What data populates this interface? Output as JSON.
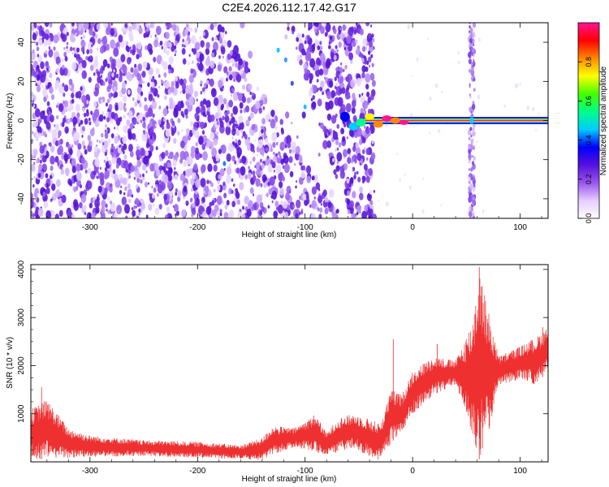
{
  "figure_title": "C2E4.2026.112.17.42.G17",
  "chart_data": [
    {
      "type": "heatmap",
      "title": "",
      "xlabel": "Height of straight line (km)",
      "ylabel": "Frequency (Hz)",
      "xlim": [
        -355,
        126
      ],
      "ylim": [
        -50,
        50
      ],
      "xticks": [
        -300,
        -200,
        -100,
        0,
        100
      ],
      "yticks": [
        -40,
        -20,
        0,
        20,
        40
      ],
      "colorbar": {
        "label": "Normalized spectral amplitude",
        "range": [
          0,
          1
        ],
        "ticks": [
          0.0,
          0.2,
          0.4,
          0.6,
          0.8
        ],
        "colormap": [
          "#ffffff",
          "#e6ccff",
          "#9955ee",
          "#5511dd",
          "#0000ff",
          "#00ccff",
          "#00ff88",
          "#44ff00",
          "#ffff00",
          "#ff8800",
          "#ff0000",
          "#ff1493"
        ]
      },
      "features": {
        "background_noise_x_range": [
          -355,
          -50
        ],
        "clear_wedge_description": "white diagonal gap from about (-180 km, 50 Hz) to (-60 km, -50 Hz)",
        "stable_tone": {
          "x_range": [
            -60,
            126
          ],
          "frequency": 0,
          "peak_amplitude": 1.0
        },
        "vertical_noise_band_x": 55
      }
    },
    {
      "type": "line",
      "title": "",
      "xlabel": "Height of straight line (km)",
      "ylabel": "SNR (10 * v/v)",
      "xlim": [
        -355,
        126
      ],
      "ylim": [
        0,
        4100
      ],
      "xticks": [
        -300,
        -200,
        -100,
        0,
        100
      ],
      "yticks": [
        1000,
        2000,
        3000,
        4000
      ],
      "series": [
        {
          "color": "#ee3030",
          "envelope_points": [
            {
              "x": -355,
              "low": 50,
              "high": 1100
            },
            {
              "x": -340,
              "low": 60,
              "high": 1300
            },
            {
              "x": -320,
              "low": 80,
              "high": 700
            },
            {
              "x": -300,
              "low": 100,
              "high": 550
            },
            {
              "x": -250,
              "low": 120,
              "high": 450
            },
            {
              "x": -200,
              "low": 80,
              "high": 420
            },
            {
              "x": -160,
              "low": 60,
              "high": 350
            },
            {
              "x": -140,
              "low": 30,
              "high": 500
            },
            {
              "x": -130,
              "low": 150,
              "high": 750
            },
            {
              "x": -110,
              "low": 300,
              "high": 700
            },
            {
              "x": -90,
              "low": 200,
              "high": 1000
            },
            {
              "x": -80,
              "low": 150,
              "high": 600
            },
            {
              "x": -70,
              "low": 200,
              "high": 900
            },
            {
              "x": -55,
              "low": 300,
              "high": 1000
            },
            {
              "x": -40,
              "low": 100,
              "high": 900
            },
            {
              "x": -30,
              "low": 20,
              "high": 800
            },
            {
              "x": -20,
              "low": 400,
              "high": 1500
            },
            {
              "x": -10,
              "low": 600,
              "high": 1400
            },
            {
              "x": 0,
              "low": 1000,
              "high": 1900
            },
            {
              "x": 20,
              "low": 1400,
              "high": 2200
            },
            {
              "x": 40,
              "low": 1600,
              "high": 2100
            },
            {
              "x": 55,
              "low": 600,
              "high": 2900
            },
            {
              "x": 62,
              "low": 50,
              "high": 4050
            },
            {
              "x": 70,
              "low": 500,
              "high": 3200
            },
            {
              "x": 80,
              "low": 1600,
              "high": 2200
            },
            {
              "x": 100,
              "low": 1700,
              "high": 2400
            },
            {
              "x": 115,
              "low": 1600,
              "high": 2600
            },
            {
              "x": 126,
              "low": 1900,
              "high": 2800
            }
          ],
          "spikes": [
            {
              "x": -18,
              "y": 2550
            },
            {
              "x": 23,
              "y": 2450
            },
            {
              "x": 62,
              "y": 4050
            },
            {
              "x": -345,
              "y": 1550
            },
            {
              "x": 121,
              "y": 2800
            }
          ]
        }
      ]
    }
  ]
}
